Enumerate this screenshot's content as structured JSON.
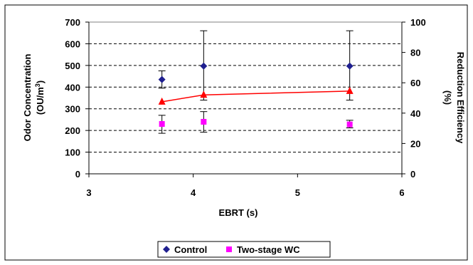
{
  "chart_data": {
    "type": "scatter",
    "xlabel": "EBRT (s)",
    "ylabel_left_line1": "Odor Concentration",
    "ylabel_left_line2_prefix": "(OU/m",
    "ylabel_left_line2_sup": "3",
    "ylabel_left_line2_suffix": ")",
    "ylabel_right_line1": "Reduction Efficiency",
    "ylabel_right_line2": "(%)",
    "xlim": [
      3,
      6
    ],
    "ylim_left": [
      0,
      700
    ],
    "ylim_right": [
      0,
      100
    ],
    "x_ticks": [
      "3",
      "4",
      "5",
      "6"
    ],
    "y_left_ticks": [
      "0",
      "100",
      "200",
      "300",
      "400",
      "500",
      "600",
      "700"
    ],
    "y_right_ticks": [
      "0",
      "20",
      "40",
      "60",
      "80",
      "100"
    ],
    "grid": "horizontal dashed",
    "legend_position": "bottom",
    "series": [
      {
        "name": "Control",
        "axis": "left",
        "marker": "diamond",
        "color": "#1f1f8f",
        "x": [
          3.7,
          4.1,
          5.5
        ],
        "y": [
          435,
          497,
          497
        ],
        "err_low": [
          395,
          340,
          340
        ],
        "err_high": [
          475,
          660,
          660
        ]
      },
      {
        "name": "Two-stage WC",
        "axis": "left",
        "marker": "square",
        "color": "#ff00ff",
        "x": [
          3.7,
          4.1,
          5.5
        ],
        "y": [
          230,
          240,
          228
        ],
        "err_low": [
          187,
          192,
          212
        ],
        "err_high": [
          270,
          287,
          247
        ]
      },
      {
        "axis": "right",
        "marker": "triangle",
        "color": "#ff0000",
        "line": true,
        "x": [
          3.7,
          4.1,
          5.5
        ],
        "y": [
          47.5,
          52,
          54.5
        ]
      }
    ]
  }
}
